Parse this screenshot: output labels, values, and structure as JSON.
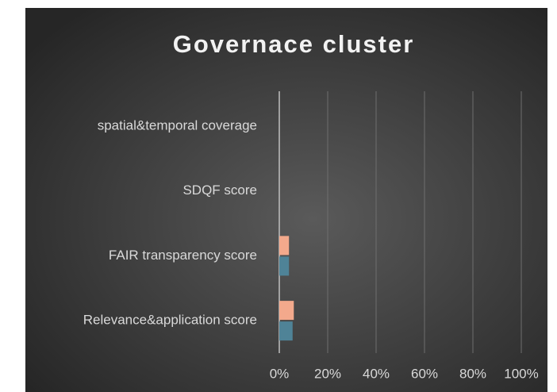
{
  "chart_data": {
    "type": "hbar",
    "title": "Governace cluster",
    "categories": [
      "Relevance&application score",
      "FAIR transparency score",
      "SDQF score",
      "spatial&temporal coverage"
    ],
    "series": [
      {
        "color": "#4f8397",
        "values": [
          5.5,
          4,
          0,
          0
        ]
      },
      {
        "color": "#f3a98c",
        "values": [
          6,
          4,
          0,
          0
        ]
      }
    ],
    "xlim": [
      0,
      100
    ],
    "xticks": [
      {
        "value": 0,
        "label": "0%"
      },
      {
        "value": 20,
        "label": "20%"
      },
      {
        "value": 40,
        "label": "40%"
      },
      {
        "value": 60,
        "label": "60%"
      },
      {
        "value": 80,
        "label": "80%"
      },
      {
        "value": 100,
        "label": "100%"
      }
    ],
    "grid": true
  }
}
